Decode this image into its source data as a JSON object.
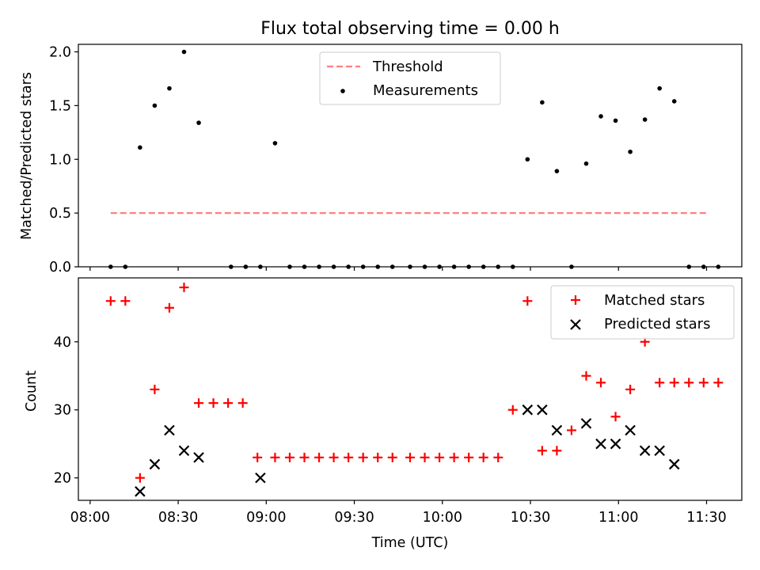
{
  "figure": {
    "title": "Flux total observing time = 0.00 h"
  },
  "chart_data": [
    {
      "type": "scatter",
      "panel": "top",
      "ylabel": "Matched/Predicted stars",
      "xlabel": "",
      "ylim": [
        0,
        2.07
      ],
      "yticks": [
        0.0,
        0.5,
        1.0,
        1.5,
        2.0
      ],
      "ytick_labels": [
        "0.0",
        "0.5",
        "1.0",
        "1.5",
        "2.0"
      ],
      "legend": {
        "placement": "upper center",
        "entries": [
          "Threshold",
          "Measurements"
        ]
      },
      "threshold": {
        "name": "Threshold",
        "value": 0.5,
        "x_start": "08:07",
        "x_end": "11:30",
        "color": "#ff8080",
        "style": "dashed"
      },
      "series": [
        {
          "name": "Measurements",
          "color": "#000000",
          "marker": "dot",
          "x": [
            "08:07",
            "08:12",
            "08:17",
            "08:22",
            "08:27",
            "08:32",
            "08:37",
            "08:48",
            "08:53",
            "08:58",
            "09:03",
            "09:08",
            "09:13",
            "09:18",
            "09:23",
            "09:28",
            "09:33",
            "09:38",
            "09:43",
            "09:49",
            "09:54",
            "09:59",
            "10:04",
            "10:09",
            "10:14",
            "10:19",
            "10:24",
            "10:29",
            "10:34",
            "10:39",
            "10:44",
            "10:49",
            "10:54",
            "10:59",
            "11:04",
            "11:09",
            "11:14",
            "11:19",
            "11:24",
            "11:29",
            "11:34"
          ],
          "y": [
            0,
            0,
            1.11,
            1.5,
            1.66,
            2.0,
            1.34,
            0,
            0,
            0,
            1.15,
            0,
            0,
            0,
            0,
            0,
            0,
            0,
            0,
            0,
            0,
            0,
            0,
            0,
            0,
            0,
            0,
            1.0,
            1.53,
            0.89,
            0,
            0.96,
            1.4,
            1.36,
            1.07,
            1.37,
            1.66,
            1.54,
            0,
            0,
            0
          ]
        }
      ]
    },
    {
      "type": "scatter",
      "panel": "bottom",
      "xlabel": "Time (UTC)",
      "ylabel": "Count",
      "ylim": [
        16.7,
        49.4
      ],
      "yticks": [
        20,
        30,
        40
      ],
      "ytick_labels": [
        "20",
        "30",
        "40"
      ],
      "xlim": [
        "07:56",
        "11:42"
      ],
      "xticks": [
        "08:00",
        "08:30",
        "09:00",
        "09:30",
        "10:00",
        "10:30",
        "11:00",
        "11:30"
      ],
      "xtick_labels": [
        "08:00",
        "08:30",
        "09:00",
        "09:30",
        "10:00",
        "10:30",
        "11:00",
        "11:30"
      ],
      "legend": {
        "placement": "upper right",
        "entries": [
          "Matched stars",
          "Predicted stars"
        ]
      },
      "series": [
        {
          "name": "Matched stars",
          "color": "#ff0000",
          "marker": "plus",
          "x": [
            "08:07",
            "08:12",
            "08:17",
            "08:22",
            "08:27",
            "08:32",
            "08:37",
            "08:42",
            "08:47",
            "08:52",
            "08:57",
            "09:03",
            "09:08",
            "09:13",
            "09:18",
            "09:23",
            "09:28",
            "09:33",
            "09:38",
            "09:43",
            "09:49",
            "09:54",
            "09:59",
            "10:04",
            "10:09",
            "10:14",
            "10:19",
            "10:24",
            "10:29",
            "10:34",
            "10:39",
            "10:44",
            "10:49",
            "10:54",
            "10:59",
            "11:04",
            "11:09",
            "11:14",
            "11:19",
            "11:24",
            "11:29",
            "11:34"
          ],
          "y": [
            46,
            46,
            20,
            33,
            45,
            48,
            31,
            31,
            31,
            31,
            23,
            23,
            23,
            23,
            23,
            23,
            23,
            23,
            23,
            23,
            23,
            23,
            23,
            23,
            23,
            23,
            23,
            30,
            46,
            24,
            24,
            27,
            35,
            34,
            29,
            33,
            40,
            34,
            34,
            34,
            34,
            34
          ]
        },
        {
          "name": "Predicted stars",
          "color": "#000000",
          "marker": "x",
          "x": [
            "08:17",
            "08:22",
            "08:27",
            "08:32",
            "08:37",
            "08:58",
            "10:29",
            "10:34",
            "10:39",
            "10:49",
            "10:54",
            "10:59",
            "11:04",
            "11:09",
            "11:14",
            "11:19"
          ],
          "y": [
            18,
            22,
            27,
            24,
            23,
            20,
            30,
            30,
            27,
            28,
            25,
            25,
            27,
            24,
            24,
            22
          ]
        }
      ]
    }
  ]
}
